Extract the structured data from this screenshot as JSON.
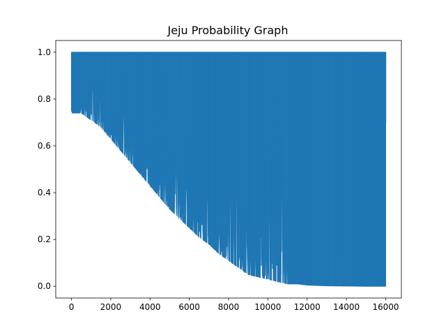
{
  "chart_data": {
    "type": "line",
    "title": "Jeju Probability Graph",
    "xlabel": "",
    "ylabel": "",
    "xlim": [
      -800,
      16800
    ],
    "ylim": [
      -0.05,
      1.05
    ],
    "x_ticks": [
      0,
      2000,
      4000,
      6000,
      8000,
      10000,
      12000,
      14000,
      16000
    ],
    "x_tick_labels": [
      "0",
      "2000",
      "4000",
      "6000",
      "8000",
      "10000",
      "12000",
      "14000",
      "16000"
    ],
    "y_ticks": [
      0.0,
      0.2,
      0.4,
      0.6,
      0.8,
      1.0
    ],
    "y_tick_labels": [
      "0.0",
      "0.2",
      "0.4",
      "0.6",
      "0.8",
      "1.0"
    ],
    "grid": false,
    "series": [
      {
        "color": "#1f77b4",
        "envelope_upper": 1.0,
        "lower_envelope_x": [
          0,
          500,
          1000,
          1500,
          2000,
          2500,
          3000,
          3500,
          4000,
          4500,
          5000,
          5500,
          6000,
          6500,
          7000,
          7500,
          8000,
          8500,
          9000,
          9500,
          10000,
          10500,
          11000,
          11500,
          12000,
          13000,
          14000,
          15000,
          16000
        ],
        "lower_envelope_y": [
          0.74,
          0.74,
          0.71,
          0.68,
          0.63,
          0.58,
          0.53,
          0.48,
          0.43,
          0.38,
          0.33,
          0.29,
          0.25,
          0.21,
          0.18,
          0.14,
          0.11,
          0.08,
          0.05,
          0.04,
          0.03,
          0.02,
          0.01,
          0.01,
          0.005,
          0.002,
          0.001,
          0.0,
          0.0
        ],
        "last_value": 0.7
      }
    ]
  }
}
